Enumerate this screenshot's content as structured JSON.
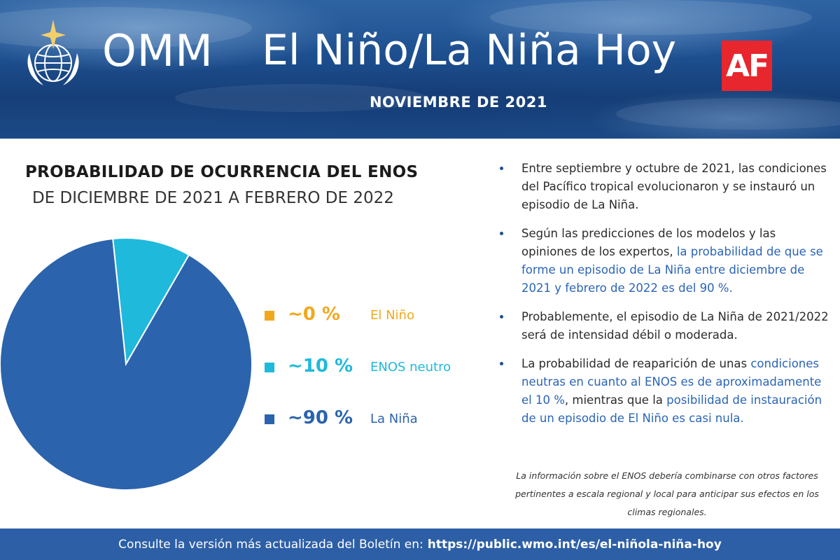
{
  "header": {
    "org_name": "OMM",
    "title": "El Niño/La Niña Hoy",
    "date": "NOVIEMBRE DE 2021",
    "badge": "AF"
  },
  "chart_data": {
    "type": "pie",
    "title": "PROBABILIDAD DE OCURRENCIA DEL ENOS",
    "subtitle": "DE DICIEMBRE DE 2021 A FEBRERO DE 2022",
    "categories": [
      "El Niño",
      "ENOS neutro",
      "La Niña"
    ],
    "values": [
      0,
      10,
      90
    ],
    "labels": [
      "~0 %",
      "~10 %",
      "~90 %"
    ],
    "colors": [
      "#f2a81d",
      "#1fb9dc",
      "#2b63ad"
    ],
    "legend_position": "right"
  },
  "bullets": [
    {
      "parts": [
        {
          "text": "Entre septiembre y octubre de 2021, las condiciones del Pacífico tropical evolucionaron y se instauró un episodio de La Niña.",
          "hl": false
        }
      ]
    },
    {
      "parts": [
        {
          "text": "Según las predicciones de los modelos y las opiniones de los expertos, ",
          "hl": false
        },
        {
          "text": "la probabilidad de que se forme un episodio de La Niña entre diciembre de 2021 y febrero de 2022 es del 90 %.",
          "hl": true
        }
      ]
    },
    {
      "parts": [
        {
          "text": "Probablemente, el episodio de La Niña de 2021/2022 será de intensidad débil o moderada.",
          "hl": false
        }
      ]
    },
    {
      "parts": [
        {
          "text": "La probabilidad de reaparición de unas ",
          "hl": false
        },
        {
          "text": "condiciones neutras en cuanto al ENOS es de aproximadamente el 10 %",
          "hl": true
        },
        {
          "text": ", mientras que la ",
          "hl": false
        },
        {
          "text": "posibilidad de instauración de un episodio de El Niño es casi nula.",
          "hl": true
        }
      ]
    }
  ],
  "note": "La información sobre el ENOS debería combinarse con otros factores pertinentes a escala regional y local para anticipar sus efectos en los climas regionales.",
  "footer": {
    "text": "Consulte la versión más actualizada del Boletín en:",
    "url": "https://public.wmo.int/es/el-niñola-niña-hoy"
  },
  "icons": [
    "wmo-logo-icon",
    "bullet-icon"
  ]
}
